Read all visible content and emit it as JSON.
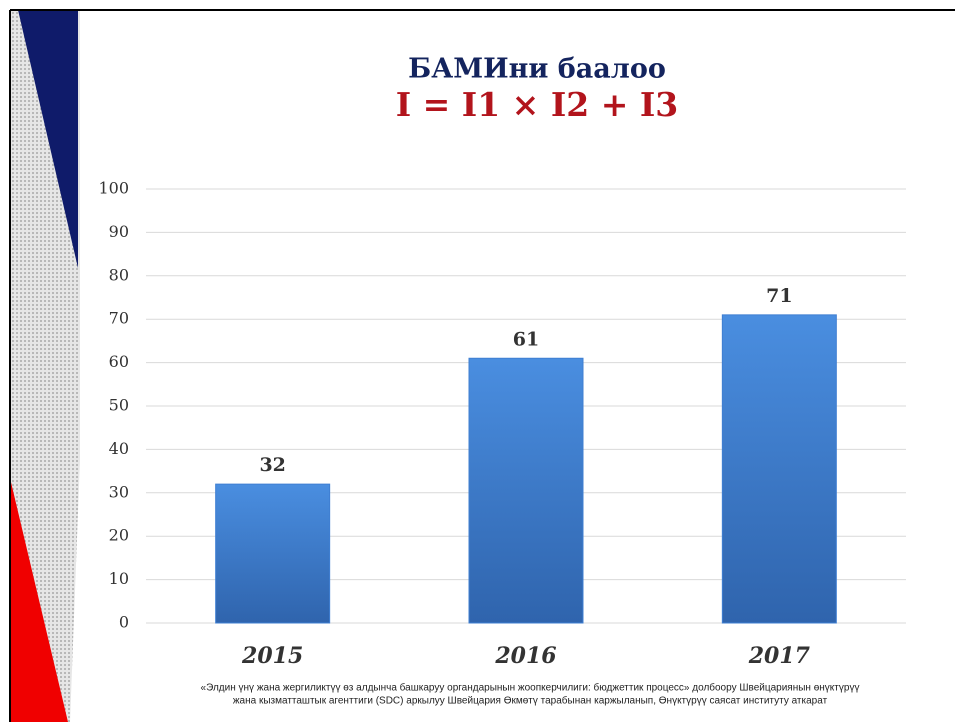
{
  "chart_data": {
    "type": "bar",
    "title": "БАМИни баалоо",
    "subtitle": "I = I1 × I2 + I3",
    "categories": [
      "2015",
      "2016",
      "2017"
    ],
    "values": [
      32,
      61,
      71
    ],
    "color": "#3f7fd2",
    "ylim": [
      0,
      100
    ],
    "yticks": [
      0,
      10,
      20,
      30,
      40,
      50,
      60,
      70,
      80,
      90,
      100
    ],
    "grid": true,
    "footnote": [
      "«Элдин үнү жана жергиликтүү өз алдынча башкаруу органдарынын жоопкерчилиги: бюджеттик процесс» долбоору Швейцариянын өнүктүрүү",
      "жана кызматташтык агенттиги (SDC) аркылуу Швейцария Өкмөтү тарабынан каржыланып, Өнүктүрүү саясат институту аткарат"
    ]
  }
}
